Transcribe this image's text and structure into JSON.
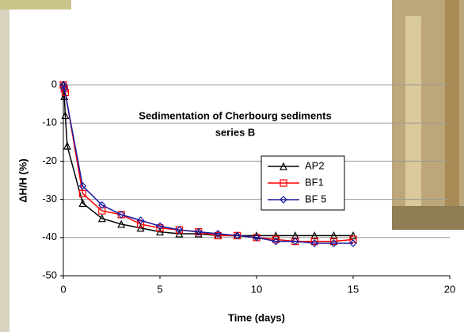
{
  "chart_data": {
    "type": "line",
    "title": "Sedimentation of Cherbourg sediments",
    "subtitle": "series B",
    "x_label": "Time (days)",
    "y_label": "ΔH/H (%)",
    "xlim": [
      0,
      20
    ],
    "xticks": [
      0,
      5,
      10,
      15,
      20
    ],
    "ylim": [
      -50,
      0
    ],
    "yticks": [
      0,
      -10,
      -20,
      -30,
      -40,
      -50
    ],
    "grid": true,
    "series": [
      {
        "name": "AP2",
        "color": "#000000",
        "marker": "triangle",
        "x": [
          0,
          0.05,
          0.1,
          0.2,
          1,
          2,
          3,
          4,
          5,
          6,
          7,
          8,
          9,
          10,
          11,
          12,
          13,
          14,
          15
        ],
        "values": [
          0,
          -3,
          -8,
          -16,
          -31,
          -35,
          -36.5,
          -37.5,
          -38.5,
          -39,
          -39,
          -39.5,
          -39.5,
          -39.5,
          -39.5,
          -39.5,
          -39.5,
          -39.5,
          -39.5
        ]
      },
      {
        "name": "BF1",
        "color": "#ff0000",
        "marker": "square",
        "x": [
          0,
          0.05,
          0.1,
          1,
          2,
          3,
          4,
          5,
          6,
          7,
          8,
          9,
          10,
          11,
          12,
          13,
          14,
          15
        ],
        "values": [
          0,
          -1,
          -2,
          -28.5,
          -33,
          -34,
          -36.5,
          -37.5,
          -38,
          -38.5,
          -39.5,
          -39.5,
          -40,
          -40.5,
          -41,
          -41,
          -41,
          -40.5
        ]
      },
      {
        "name": "BF 5",
        "color": "#1a1aa0",
        "marker": "diamond",
        "x": [
          0,
          0.05,
          1,
          2,
          3,
          4,
          5,
          6,
          7,
          8,
          9,
          10,
          11,
          12,
          13,
          14,
          15
        ],
        "values": [
          0,
          -1,
          -26.5,
          -31.5,
          -34,
          -35.5,
          -37,
          -38,
          -38.5,
          -39,
          -39.5,
          -40,
          -41,
          -41,
          -41.5,
          -41.5,
          -41.5
        ]
      }
    ]
  }
}
